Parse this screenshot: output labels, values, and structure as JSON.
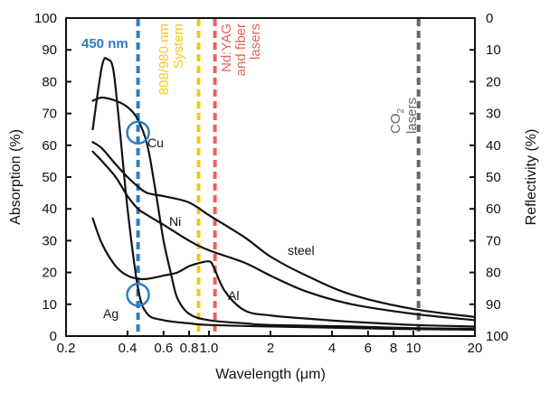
{
  "chart_data": {
    "type": "line",
    "title": "",
    "xlabel": "Wavelength (μm)",
    "ylabel": "Absorption (%)",
    "y2label": "Reflectivity (%)",
    "x_scale": "log",
    "xlim": [
      0.2,
      20
    ],
    "ylim": [
      0,
      100
    ],
    "y2lim": [
      100,
      0
    ],
    "grid": false,
    "legend": "none",
    "x_ticks": [
      {
        "value": 0.2,
        "label": "0.2"
      },
      {
        "value": 0.4,
        "label": "0.4"
      },
      {
        "value": 0.6,
        "label": "0.6"
      },
      {
        "value": 0.8,
        "label": "0.8"
      },
      {
        "value": 1.0,
        "label": "1.0"
      },
      {
        "value": 2,
        "label": "2"
      },
      {
        "value": 4,
        "label": "4"
      },
      {
        "value": 6,
        "label": "6"
      },
      {
        "value": 8,
        "label": "8"
      },
      {
        "value": 10,
        "label": "10"
      },
      {
        "value": 20,
        "label": "20"
      }
    ],
    "y_ticks": [
      {
        "value": 0,
        "label": "0"
      },
      {
        "value": 10,
        "label": "10"
      },
      {
        "value": 20,
        "label": "20"
      },
      {
        "value": 30,
        "label": "30"
      },
      {
        "value": 40,
        "label": "40"
      },
      {
        "value": 50,
        "label": "50"
      },
      {
        "value": 60,
        "label": "60"
      },
      {
        "value": 70,
        "label": "70"
      },
      {
        "value": 80,
        "label": "80"
      },
      {
        "value": 90,
        "label": "90"
      },
      {
        "value": 100,
        "label": "100"
      }
    ],
    "y2_ticks": [
      {
        "value": 0,
        "label": "100"
      },
      {
        "value": 10,
        "label": "90"
      },
      {
        "value": 20,
        "label": "80"
      },
      {
        "value": 30,
        "label": "70"
      },
      {
        "value": 40,
        "label": "60"
      },
      {
        "value": 50,
        "label": "50"
      },
      {
        "value": 60,
        "label": "40"
      },
      {
        "value": 70,
        "label": "30"
      },
      {
        "value": 80,
        "label": "20"
      },
      {
        "value": 90,
        "label": "10"
      },
      {
        "value": 100,
        "label": "0"
      }
    ],
    "series": [
      {
        "name": "Cu",
        "x": [
          0.27,
          0.3,
          0.35,
          0.4,
          0.45,
          0.5,
          0.55,
          0.6,
          0.65,
          0.7,
          0.8,
          1.0,
          1.5,
          2,
          5,
          10,
          20
        ],
        "y": [
          74,
          75,
          74,
          72,
          68,
          60,
          45,
          30,
          20,
          12,
          7,
          5,
          4,
          3.5,
          3,
          2.5,
          2.3
        ]
      },
      {
        "name": "Ag",
        "x": [
          0.27,
          0.3,
          0.32,
          0.34,
          0.36,
          0.4,
          0.45,
          0.5,
          0.6,
          0.8,
          1.0,
          2,
          5,
          10,
          20
        ],
        "y": [
          65,
          85,
          87,
          84,
          70,
          40,
          15,
          7,
          5,
          4,
          3.5,
          3,
          2.5,
          2.2,
          2
        ]
      },
      {
        "name": "Al",
        "x": [
          0.27,
          0.3,
          0.35,
          0.4,
          0.45,
          0.5,
          0.6,
          0.7,
          0.8,
          0.9,
          1.0,
          1.05,
          1.2,
          1.5,
          2,
          3,
          5,
          10,
          20
        ],
        "y": [
          37,
          29,
          22,
          19,
          18,
          18,
          19,
          20,
          22,
          23,
          23.5,
          22,
          14,
          8,
          6.5,
          5.5,
          4.5,
          3.5,
          3
        ]
      },
      {
        "name": "Ni",
        "x": [
          0.27,
          0.3,
          0.35,
          0.4,
          0.45,
          0.5,
          0.6,
          0.8,
          1.0,
          1.5,
          2,
          3,
          5,
          10,
          20
        ],
        "y": [
          58,
          55,
          50,
          44,
          40,
          38,
          35,
          30,
          27,
          23,
          19,
          14,
          10,
          7,
          5
        ]
      },
      {
        "name": "steel",
        "x": [
          0.27,
          0.3,
          0.35,
          0.4,
          0.45,
          0.5,
          0.6,
          0.8,
          1.0,
          1.5,
          2,
          3,
          5,
          10,
          20
        ],
        "y": [
          61,
          59,
          54,
          50,
          47,
          45,
          44,
          42,
          38,
          31,
          25,
          19,
          13,
          8.5,
          6
        ]
      }
    ],
    "vlines": [
      {
        "label": "450 nm",
        "x": 0.45,
        "color": "#2e7bc4"
      },
      {
        "label": "808/980 nm System",
        "x": 0.89,
        "color": "#f5c71a"
      },
      {
        "label": "Nd:YAG and fiber lasers",
        "x": 1.07,
        "color": "#e8625a"
      },
      {
        "label": "CO2 lasers",
        "x": 10.6,
        "color": "#666666"
      }
    ],
    "highlight_circles": [
      {
        "x": 0.45,
        "y": 64,
        "color": "#2e7bc4",
        "series": "Cu"
      },
      {
        "x": 0.45,
        "y": 13,
        "color": "#2e7bc4",
        "series": "Ag"
      }
    ],
    "label_450": "450 nm",
    "label_808_line1": "808/980 nm",
    "label_808_line2": "System",
    "label_ndyag_line1": "Nd:YAG",
    "label_ndyag_line2": "and fiber",
    "label_ndyag_line3": "lasers",
    "label_co2_main": "CO",
    "label_co2_sub": "2",
    "label_co2_line2": "lasers",
    "label_cu": "Cu",
    "label_ag": "Ag",
    "label_al": "Al",
    "label_ni": "Ni",
    "label_steel": "steel"
  }
}
